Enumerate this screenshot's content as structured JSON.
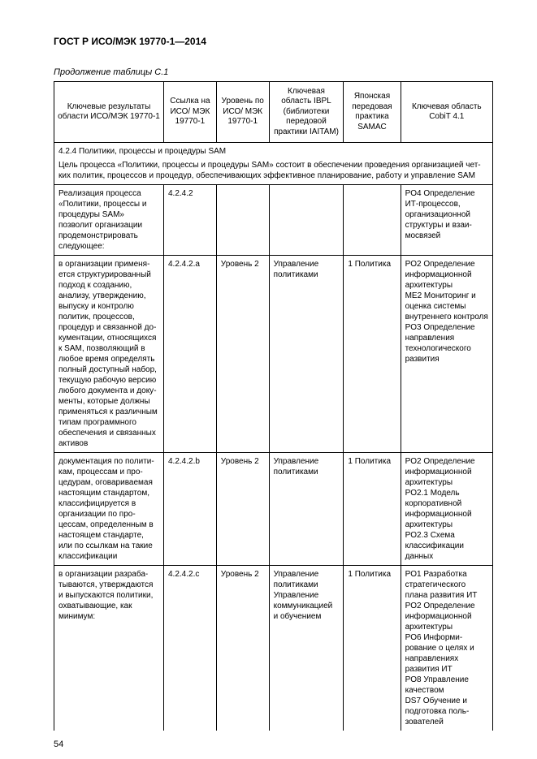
{
  "doc_title": "ГОСТ Р ИСО/МЭК 19770-1—2014",
  "caption": "Продолжение таблицы C.1",
  "headers": {
    "h1": "Ключевые результаты области ИСО/МЭК 19770-1",
    "h2": "Ссылка на ИСО/ МЭК 19770-1",
    "h3": "Уровень по ИСО/ МЭК 19770-1",
    "h4": "Ключевая область IBPL (библиотеки передо­вой практики IAITAM)",
    "h5": "Японская передовая практика SAMAC",
    "h6": "Ключевая область CobiT 4.1"
  },
  "section": {
    "title": "4.2.4 Политики, процессы и процедуры SAM",
    "desc": "Цель процесса «Политики, процессы и процедуры SAM» состоит в обеспечении проведения организацией чет­ких политик, процессов и процедур, обеспечивающих эффективное планирование, работу и управление SAM"
  },
  "rows": [
    {
      "c1": "Реализация процесса «Политики, процессы и процедуры SAM» позволит организации продемон­стрировать следующее:",
      "c2": "4.2.4.2",
      "c3": "",
      "c4": "",
      "c5": "",
      "c6": "PO4 Определение ИТ-процессов, организационной структуры и взаи­мосвязей"
    },
    {
      "c1": "в организации применя­ется структурированный подход к созданию, анализу, утверждению, выпуску и контролю политик, процессов, процедур и связанной до­кументации, относящихся к SAM, позволяющий в любое время определять полный доступный набор, текущую рабочую версию любого документа и доку­менты, которые должны применяться к различ­ным типам программного обеспечения и связанных активов",
      "c2": "4.2.4.2.a",
      "c3": "Уровень 2",
      "c4": "Управление политиками",
      "c5": "1 Политика",
      "c6": "PO2 Определение информационной архитектуры\nME2 Мониторинг и оценка систе­мы внутреннего контроля\nPO3 Определе­ние направления технологического развития"
    },
    {
      "c1": "документация по полити­кам, процессам и про­цедурам, оговариваемая настоящим стандартом, классифицируется в организации по про­цессам, определенным в настоящем стандарте, или по ссылкам на такие классификации",
      "c2": "4.2.4.2.b",
      "c3": "Уровень 2",
      "c4": "Управление политиками",
      "c5": "1 Политика",
      "c6": "PO2 Определение информационной архитектуры\nPO2.1 Модель корпоративной информационной архитектуры\nPO2.3 Схема классификации данных"
    },
    {
      "c1": "в организации разраба­тываются, утверждаются и выпускаются полити­ки, охватывающие, как минимум:",
      "c2": "4.2.4.2.c",
      "c3": "Уровень 2",
      "c4": "Управление политиками\nУправление коммуникацией и обучением",
      "c5": "1 Политика",
      "c6": "PO1 Разработка стратегического плана развития ИТ\nPO2 Определение информационной архитектуры\nPO6 Информи­рование о целях и направлениях развития ИТ\nPO8 Управление качеством\nDS7 Обучение и подготовка поль­зователей"
    }
  ],
  "page_number": "54"
}
